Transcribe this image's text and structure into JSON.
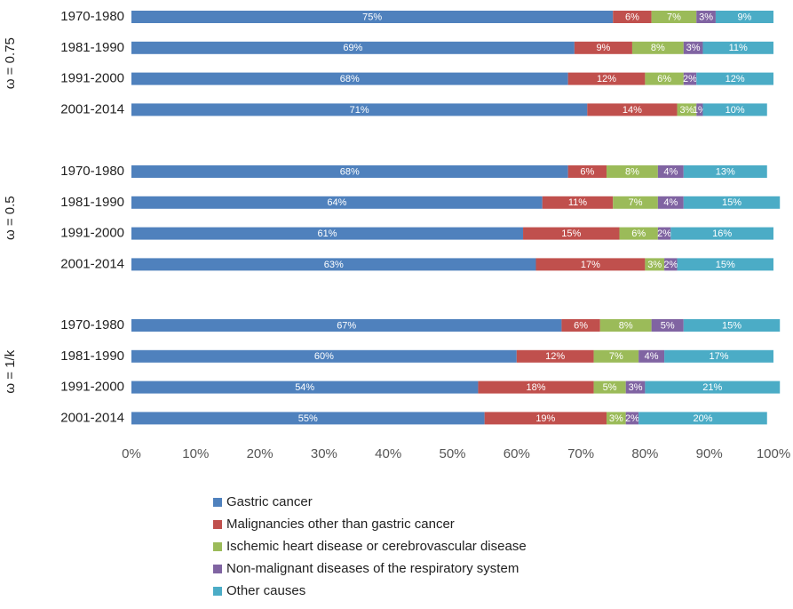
{
  "chart_data": [
    {
      "type": "bar",
      "orientation": "horizontal",
      "stacked": true,
      "group_label": "ω = 0.75",
      "categories": [
        "1970-1980",
        "1981-1990",
        "1991-2000",
        "2001-2014"
      ],
      "xlim": [
        0,
        100
      ],
      "series": [
        {
          "name": "Gastric cancer",
          "color": "#4f81bd",
          "values": [
            75,
            69,
            68,
            71
          ],
          "value_labels": [
            "75%",
            "69%",
            "68%",
            "71%"
          ]
        },
        {
          "name": "Malignancies other than gastric cancer",
          "color": "#c0504d",
          "values": [
            6,
            9,
            12,
            14
          ],
          "value_labels": [
            "6%",
            "9%",
            "12%",
            "14%"
          ]
        },
        {
          "name": "Ischemic heart disease or cerebrovascular disease",
          "color": "#9bbb59",
          "values": [
            7,
            8,
            6,
            3
          ],
          "value_labels": [
            "7%",
            "8%",
            "6%",
            "3%"
          ]
        },
        {
          "name": "Non-malignant diseases of the respiratory system",
          "color": "#8064a2",
          "values": [
            3,
            3,
            2,
            1
          ],
          "value_labels": [
            "3%",
            "3%",
            "2%",
            "1%"
          ]
        },
        {
          "name": "Other causes",
          "color": "#4bacc6",
          "values": [
            9,
            11,
            12,
            10
          ],
          "value_labels": [
            "9%",
            "11%",
            "12%",
            "10%"
          ]
        }
      ]
    },
    {
      "type": "bar",
      "orientation": "horizontal",
      "stacked": true,
      "group_label": "ω = 0.5",
      "categories": [
        "1970-1980",
        "1981-1990",
        "1991-2000",
        "2001-2014"
      ],
      "xlim": [
        0,
        100
      ],
      "series": [
        {
          "name": "Gastric cancer",
          "color": "#4f81bd",
          "values": [
            68,
            64,
            61,
            63
          ],
          "value_labels": [
            "68%",
            "64%",
            "61%",
            "63%"
          ]
        },
        {
          "name": "Malignancies other than gastric cancer",
          "color": "#c0504d",
          "values": [
            6,
            11,
            15,
            17
          ],
          "value_labels": [
            "6%",
            "11%",
            "15%",
            "17%"
          ]
        },
        {
          "name": "Ischemic heart disease or cerebrovascular disease",
          "color": "#9bbb59",
          "values": [
            8,
            7,
            6,
            3
          ],
          "value_labels": [
            "8%",
            "7%",
            "6%",
            "3%"
          ]
        },
        {
          "name": "Non-malignant diseases of the respiratory system",
          "color": "#8064a2",
          "values": [
            4,
            4,
            2,
            2
          ],
          "value_labels": [
            "4%",
            "4%",
            "2%",
            "2%"
          ]
        },
        {
          "name": "Other causes",
          "color": "#4bacc6",
          "values": [
            13,
            15,
            16,
            15
          ],
          "value_labels": [
            "13%",
            "15%",
            "16%",
            "15%"
          ]
        }
      ]
    },
    {
      "type": "bar",
      "orientation": "horizontal",
      "stacked": true,
      "group_label": "ω = 1/k",
      "categories": [
        "1970-1980",
        "1981-1990",
        "1991-2000",
        "2001-2014"
      ],
      "xlim": [
        0,
        100
      ],
      "xticks": [
        {
          "value": 0,
          "label": "0%"
        },
        {
          "value": 10,
          "label": "10%"
        },
        {
          "value": 20,
          "label": "20%"
        },
        {
          "value": 30,
          "label": "30%"
        },
        {
          "value": 40,
          "label": "40%"
        },
        {
          "value": 50,
          "label": "50%"
        },
        {
          "value": 60,
          "label": "60%"
        },
        {
          "value": 70,
          "label": "70%"
        },
        {
          "value": 80,
          "label": "80%"
        },
        {
          "value": 90,
          "label": "90%"
        },
        {
          "value": 100,
          "label": "100%"
        }
      ],
      "series": [
        {
          "name": "Gastric cancer",
          "color": "#4f81bd",
          "values": [
            67,
            60,
            54,
            55
          ],
          "value_labels": [
            "67%",
            "60%",
            "54%",
            "55%"
          ]
        },
        {
          "name": "Malignancies other than gastric cancer",
          "color": "#c0504d",
          "values": [
            6,
            12,
            18,
            19
          ],
          "value_labels": [
            "6%",
            "12%",
            "18%",
            "19%"
          ]
        },
        {
          "name": "Ischemic heart disease or cerebrovascular disease",
          "color": "#9bbb59",
          "values": [
            8,
            7,
            5,
            3
          ],
          "value_labels": [
            "8%",
            "7%",
            "5%",
            "3%"
          ]
        },
        {
          "name": "Non-malignant diseases of the respiratory system",
          "color": "#8064a2",
          "values": [
            5,
            4,
            3,
            2
          ],
          "value_labels": [
            "5%",
            "4%",
            "3%",
            "2%"
          ]
        },
        {
          "name": "Other causes",
          "color": "#4bacc6",
          "values": [
            15,
            17,
            21,
            20
          ],
          "value_labels": [
            "15%",
            "17%",
            "21%",
            "20%"
          ]
        }
      ]
    }
  ]
}
